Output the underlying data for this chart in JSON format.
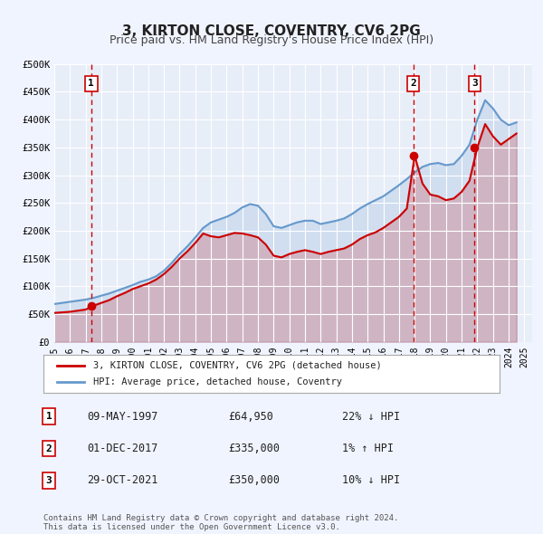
{
  "title": "3, KIRTON CLOSE, COVENTRY, CV6 2PG",
  "subtitle": "Price paid vs. HM Land Registry's House Price Index (HPI)",
  "background_color": "#f0f4ff",
  "plot_bg_color": "#e8eef8",
  "grid_color": "#ffffff",
  "ylim": [
    0,
    500000
  ],
  "xlim_start": 1995.0,
  "xlim_end": 2025.5,
  "yticks": [
    0,
    50000,
    100000,
    150000,
    200000,
    250000,
    300000,
    350000,
    400000,
    450000,
    500000
  ],
  "ytick_labels": [
    "£0",
    "£50K",
    "£100K",
    "£150K",
    "£200K",
    "£250K",
    "£300K",
    "£350K",
    "£400K",
    "£450K",
    "£500K"
  ],
  "xticks": [
    1995,
    1996,
    1997,
    1998,
    1999,
    2000,
    2001,
    2002,
    2003,
    2004,
    2005,
    2006,
    2007,
    2008,
    2009,
    2010,
    2011,
    2012,
    2013,
    2014,
    2015,
    2016,
    2017,
    2018,
    2019,
    2020,
    2021,
    2022,
    2023,
    2024,
    2025
  ],
  "price_color": "#cc0000",
  "hpi_color": "#6699cc",
  "dashed_line_color": "#cc0000",
  "sale_points": [
    {
      "year": 1997.36,
      "price": 64950,
      "label": "1"
    },
    {
      "year": 2017.92,
      "price": 335000,
      "label": "2"
    },
    {
      "year": 2021.83,
      "price": 350000,
      "label": "3"
    }
  ],
  "hpi_data_x": [
    1995.0,
    1995.5,
    1996.0,
    1996.5,
    1997.0,
    1997.5,
    1998.0,
    1998.5,
    1999.0,
    1999.5,
    2000.0,
    2000.5,
    2001.0,
    2001.5,
    2002.0,
    2002.5,
    2003.0,
    2003.5,
    2004.0,
    2004.5,
    2005.0,
    2005.5,
    2006.0,
    2006.5,
    2007.0,
    2007.5,
    2008.0,
    2008.5,
    2009.0,
    2009.5,
    2010.0,
    2010.5,
    2011.0,
    2011.5,
    2012.0,
    2012.5,
    2013.0,
    2013.5,
    2014.0,
    2014.5,
    2015.0,
    2015.5,
    2016.0,
    2016.5,
    2017.0,
    2017.5,
    2018.0,
    2018.5,
    2019.0,
    2019.5,
    2020.0,
    2020.5,
    2021.0,
    2021.5,
    2022.0,
    2022.5,
    2023.0,
    2023.5,
    2024.0,
    2024.5
  ],
  "hpi_data_y": [
    68000,
    70000,
    72000,
    74000,
    76000,
    79000,
    83000,
    87000,
    92000,
    97000,
    102000,
    108000,
    112000,
    118000,
    128000,
    142000,
    158000,
    172000,
    188000,
    205000,
    215000,
    220000,
    225000,
    232000,
    242000,
    248000,
    245000,
    230000,
    208000,
    205000,
    210000,
    215000,
    218000,
    218000,
    212000,
    215000,
    218000,
    222000,
    230000,
    240000,
    248000,
    255000,
    262000,
    272000,
    282000,
    293000,
    305000,
    315000,
    320000,
    322000,
    318000,
    320000,
    335000,
    355000,
    400000,
    435000,
    420000,
    400000,
    390000,
    395000
  ],
  "price_data_x": [
    1995.0,
    1995.5,
    1996.0,
    1996.5,
    1997.0,
    1997.5,
    1998.0,
    1998.5,
    1999.0,
    1999.5,
    2000.0,
    2000.5,
    2001.0,
    2001.5,
    2002.0,
    2002.5,
    2003.0,
    2003.5,
    2004.0,
    2004.5,
    2005.0,
    2005.5,
    2006.0,
    2006.5,
    2007.0,
    2007.5,
    2008.0,
    2008.5,
    2009.0,
    2009.5,
    2010.0,
    2010.5,
    2011.0,
    2011.5,
    2012.0,
    2012.5,
    2013.0,
    2013.5,
    2014.0,
    2014.5,
    2015.0,
    2015.5,
    2016.0,
    2016.5,
    2017.0,
    2017.5,
    2018.0,
    2018.5,
    2019.0,
    2019.5,
    2020.0,
    2020.5,
    2021.0,
    2021.5,
    2022.0,
    2022.5,
    2023.0,
    2023.5,
    2024.0,
    2024.5
  ],
  "price_data_y": [
    52000,
    53000,
    54000,
    56000,
    58000,
    64950,
    70000,
    75000,
    82000,
    88000,
    95000,
    100000,
    105000,
    112000,
    122000,
    135000,
    150000,
    163000,
    178000,
    195000,
    190000,
    188000,
    192000,
    196000,
    195000,
    192000,
    188000,
    175000,
    155000,
    152000,
    158000,
    162000,
    165000,
    162000,
    158000,
    162000,
    165000,
    168000,
    175000,
    185000,
    192000,
    197000,
    205000,
    215000,
    225000,
    240000,
    335000,
    285000,
    265000,
    262000,
    255000,
    258000,
    270000,
    290000,
    350000,
    392000,
    370000,
    355000,
    365000,
    375000
  ],
  "legend_label_price": "3, KIRTON CLOSE, COVENTRY, CV6 2PG (detached house)",
  "legend_label_hpi": "HPI: Average price, detached house, Coventry",
  "table_rows": [
    {
      "num": "1",
      "date": "09-MAY-1997",
      "price": "£64,950",
      "pct": "22% ↓ HPI"
    },
    {
      "num": "2",
      "date": "01-DEC-2017",
      "price": "£335,000",
      "pct": "1% ↑ HPI"
    },
    {
      "num": "3",
      "date": "29-OCT-2021",
      "price": "£350,000",
      "pct": "10% ↓ HPI"
    }
  ],
  "footnote": "Contains HM Land Registry data © Crown copyright and database right 2024.\nThis data is licensed under the Open Government Licence v3.0."
}
